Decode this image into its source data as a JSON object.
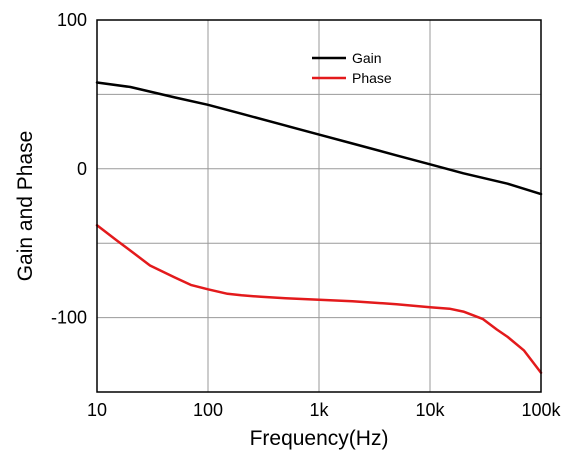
{
  "chart_data": {
    "type": "line",
    "xlabel": "Frequency(Hz)",
    "ylabel": "Gain and Phase",
    "xscale": "log",
    "xlim": [
      10,
      100000
    ],
    "ylim": [
      -150,
      100
    ],
    "x_ticks": [
      10,
      100,
      1000,
      10000,
      100000
    ],
    "x_tick_labels": [
      "10",
      "100",
      "1k",
      "10k",
      "100k"
    ],
    "y_ticks": [
      100,
      0,
      -100
    ],
    "y_tick_labels": [
      "100",
      "0",
      "-100"
    ],
    "grid": true,
    "legend_position": "top-center",
    "series": [
      {
        "name": "Gain",
        "color": "#000000",
        "x": [
          10,
          20,
          50,
          100,
          200,
          500,
          1000,
          2000,
          5000,
          10000,
          20000,
          50000,
          100000
        ],
        "y": [
          58,
          55,
          48,
          43,
          37,
          29,
          23,
          17,
          9,
          3,
          -3,
          -10,
          -17
        ]
      },
      {
        "name": "Phase",
        "color": "#e31a1c",
        "x": [
          10,
          15,
          20,
          30,
          50,
          70,
          100,
          150,
          200,
          300,
          500,
          1000,
          2000,
          5000,
          10000,
          15000,
          20000,
          30000,
          40000,
          50000,
          70000,
          100000
        ],
        "y": [
          -38,
          -48,
          -55,
          -65,
          -73,
          -78,
          -81,
          -84,
          -85,
          -86,
          -87,
          -88,
          -89,
          -91,
          -93,
          -94,
          -96,
          -101,
          -108,
          -113,
          -122,
          -137
        ]
      }
    ]
  }
}
